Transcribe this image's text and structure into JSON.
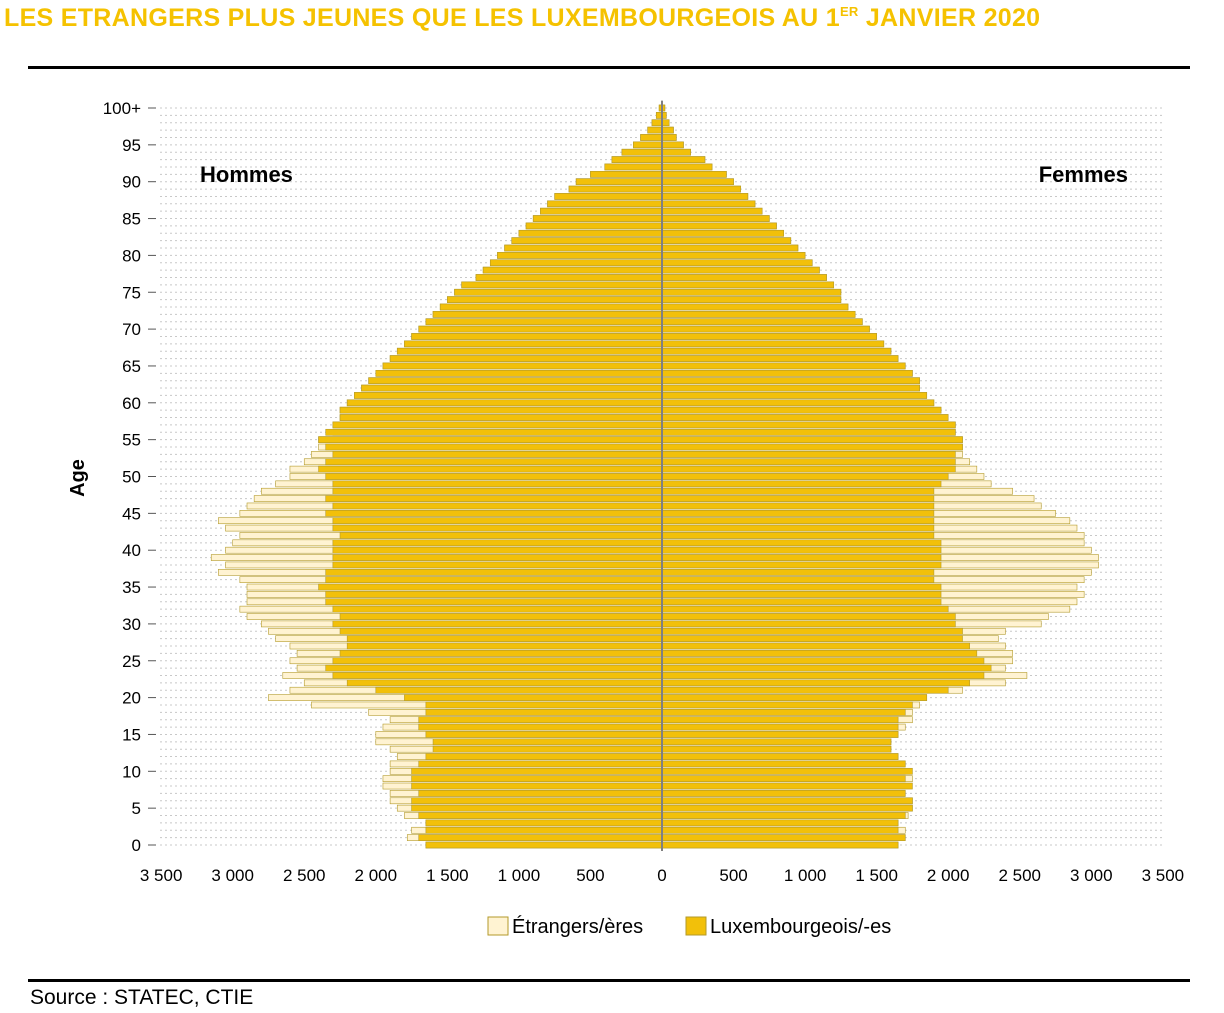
{
  "title_main": "LES ETRANGERS PLUS JEUNES QUE LES LUXEMBOURGEOIS AU 1",
  "title_sup": "ER",
  "title_tail": " JANVIER 2020",
  "source": "Source : STATEC, CTIE",
  "colors": {
    "title": "#f5c200",
    "lux": "#f2c00a",
    "foreign": "#fff3d2",
    "stroke": "#b39a2a"
  },
  "chart_data": {
    "type": "population-pyramid",
    "title": "LES ETRANGERS PLUS JEUNES QUE LES LUXEMBOURGEOIS AU 1ER JANVIER 2020",
    "ylabel": "Age",
    "left_label": "Hommes",
    "right_label": "Femmes",
    "y_ticks": [
      "0",
      "5",
      "10",
      "15",
      "20",
      "25",
      "30",
      "35",
      "40",
      "45",
      "50",
      "55",
      "60",
      "65",
      "70",
      "75",
      "80",
      "85",
      "90",
      "95",
      "100+"
    ],
    "x_ticks": [
      "3 500",
      "3 000",
      "2 500",
      "2 000",
      "1 500",
      "1 000",
      "500",
      "0",
      "500",
      "1 000",
      "1 500",
      "2 000",
      "2 500",
      "3 000",
      "3 500"
    ],
    "xlim": [
      -3500,
      3500
    ],
    "stacking": "Luxembourgeois inner (from 0), Étrangers outer; values are cumulative totals",
    "legend": [
      "Étrangers/ères",
      "Luxembourgeois/-es"
    ],
    "legend_position": "bottom",
    "ages": [
      0,
      1,
      2,
      3,
      4,
      5,
      6,
      7,
      8,
      9,
      10,
      11,
      12,
      13,
      14,
      15,
      16,
      17,
      18,
      19,
      20,
      21,
      22,
      23,
      24,
      25,
      26,
      27,
      28,
      29,
      30,
      31,
      32,
      33,
      34,
      35,
      36,
      37,
      38,
      39,
      40,
      41,
      42,
      43,
      44,
      45,
      46,
      47,
      48,
      49,
      50,
      51,
      52,
      53,
      54,
      55,
      56,
      57,
      58,
      59,
      60,
      61,
      62,
      63,
      64,
      65,
      66,
      67,
      68,
      69,
      70,
      71,
      72,
      73,
      74,
      75,
      76,
      77,
      78,
      79,
      80,
      81,
      82,
      83,
      84,
      85,
      86,
      87,
      88,
      89,
      90,
      91,
      92,
      93,
      94,
      95,
      96,
      97,
      98,
      99,
      100
    ],
    "series": [
      {
        "name": "Hommes – Luxembourgeois",
        "values": [
          1650,
          1700,
          1650,
          1650,
          1700,
          1750,
          1750,
          1700,
          1750,
          1750,
          1750,
          1700,
          1650,
          1600,
          1600,
          1650,
          1700,
          1700,
          1650,
          1650,
          1800,
          2000,
          2200,
          2300,
          2350,
          2300,
          2250,
          2200,
          2200,
          2250,
          2300,
          2250,
          2300,
          2350,
          2350,
          2400,
          2350,
          2350,
          2300,
          2300,
          2300,
          2300,
          2250,
          2300,
          2300,
          2350,
          2300,
          2350,
          2300,
          2300,
          2350,
          2400,
          2350,
          2300,
          2350,
          2400,
          2350,
          2300,
          2250,
          2250,
          2200,
          2150,
          2100,
          2050,
          2000,
          1950,
          1900,
          1850,
          1800,
          1750,
          1700,
          1650,
          1600,
          1550,
          1500,
          1450,
          1400,
          1300,
          1250,
          1200,
          1150,
          1100,
          1050,
          1000,
          950,
          900,
          850,
          800,
          750,
          650,
          600,
          500,
          400,
          350,
          280,
          200,
          150,
          100,
          70,
          40,
          20
        ]
      },
      {
        "name": "Hommes – Total",
        "values": [
          1650,
          1780,
          1750,
          1650,
          1800,
          1850,
          1900,
          1900,
          1950,
          1950,
          1900,
          1900,
          1850,
          1900,
          2000,
          2000,
          1950,
          1900,
          2050,
          2450,
          2750,
          2600,
          2500,
          2650,
          2550,
          2600,
          2550,
          2600,
          2700,
          2750,
          2800,
          2900,
          2950,
          2900,
          2900,
          2900,
          2950,
          3100,
          3050,
          3150,
          3050,
          3000,
          2950,
          3050,
          3100,
          2950,
          2900,
          2850,
          2800,
          2700,
          2600,
          2600,
          2500,
          2450,
          2400,
          2400,
          2300,
          2300,
          2250,
          2250,
          2200,
          2150,
          2100,
          2050,
          2000,
          1950,
          1900,
          1850,
          1800,
          1750,
          1700,
          1650,
          1600,
          1550,
          1500,
          1450,
          1400,
          1300,
          1250,
          1200,
          1150,
          1100,
          1050,
          1000,
          950,
          900,
          850,
          800,
          750,
          650,
          600,
          500,
          400,
          350,
          280,
          200,
          150,
          100,
          70,
          40,
          20
        ]
      },
      {
        "name": "Femmes – Luxembourgeois",
        "values": [
          1650,
          1700,
          1650,
          1650,
          1700,
          1750,
          1750,
          1700,
          1750,
          1700,
          1750,
          1700,
          1650,
          1600,
          1600,
          1650,
          1650,
          1650,
          1700,
          1750,
          1850,
          2000,
          2150,
          2250,
          2300,
          2250,
          2200,
          2150,
          2100,
          2100,
          2050,
          2050,
          2000,
          1950,
          1950,
          1950,
          1900,
          1900,
          1950,
          1950,
          1950,
          1950,
          1900,
          1900,
          1900,
          1900,
          1900,
          1900,
          1900,
          1950,
          2000,
          2050,
          2050,
          2050,
          2100,
          2100,
          2050,
          2050,
          2000,
          1950,
          1900,
          1850,
          1800,
          1800,
          1750,
          1700,
          1650,
          1600,
          1550,
          1500,
          1450,
          1400,
          1350,
          1300,
          1250,
          1250,
          1200,
          1150,
          1100,
          1050,
          1000,
          950,
          900,
          850,
          800,
          750,
          700,
          650,
          600,
          550,
          500,
          450,
          350,
          300,
          200,
          150,
          100,
          80,
          50,
          30,
          20
        ]
      },
      {
        "name": "Femmes – Total",
        "values": [
          1650,
          1700,
          1700,
          1650,
          1720,
          1750,
          1750,
          1700,
          1700,
          1750,
          1700,
          1700,
          1650,
          1600,
          1600,
          1650,
          1700,
          1750,
          1750,
          1800,
          1850,
          2100,
          2400,
          2550,
          2400,
          2450,
          2450,
          2400,
          2350,
          2400,
          2650,
          2700,
          2850,
          2900,
          2950,
          2900,
          2950,
          3000,
          3050,
          3050,
          3000,
          2950,
          2950,
          2900,
          2850,
          2750,
          2650,
          2600,
          2450,
          2300,
          2250,
          2200,
          2150,
          2100,
          2100,
          2100,
          2050,
          2050,
          2000,
          1950,
          1900,
          1850,
          1800,
          1800,
          1750,
          1700,
          1650,
          1600,
          1550,
          1500,
          1450,
          1400,
          1350,
          1300,
          1250,
          1250,
          1200,
          1150,
          1100,
          1050,
          1000,
          950,
          900,
          850,
          800,
          750,
          700,
          650,
          600,
          550,
          500,
          450,
          350,
          300,
          200,
          150,
          100,
          80,
          50,
          30,
          20
        ]
      }
    ]
  }
}
